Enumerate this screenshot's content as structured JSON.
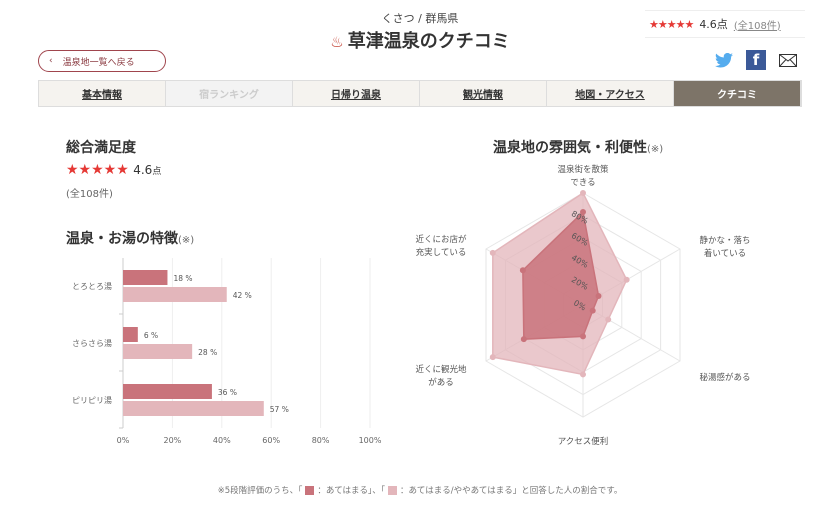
{
  "header": {
    "subtitle": "くさつ / 群馬県",
    "title": "草津温泉のクチコミ",
    "title_icon": "hot-spring-icon",
    "rating_stars": "★★★★★",
    "rating_score": "4.6点",
    "rating_count": "(全108件)",
    "back_label": "温泉地一覧へ戻る"
  },
  "tabs": [
    {
      "label": "基本情報"
    },
    {
      "label": "宿ランキング"
    },
    {
      "label": "日帰り温泉"
    },
    {
      "label": "観光情報"
    },
    {
      "label": "地図・アクセス"
    },
    {
      "label": "クチコミ"
    }
  ],
  "satisfaction": {
    "heading": "総合満足度",
    "stars": "★★★★★",
    "score": "4.6",
    "unit": "点",
    "count": "(全108件)"
  },
  "colors": {
    "dark": "#c9737b",
    "light": "#e3b6bb",
    "accent": "#e53935",
    "active_tab": "#7d7468"
  },
  "chart_data": [
    {
      "type": "bar",
      "title": "温泉・お湯の特徴",
      "title_note": "(※)",
      "categories": [
        "とろとろ湯",
        "さらさら湯",
        "ピリピリ湯"
      ],
      "series": [
        {
          "name": "あてはまる",
          "values": [
            18,
            6,
            36
          ]
        },
        {
          "name": "あてはまる/ややあてはまる",
          "values": [
            42,
            28,
            57
          ]
        }
      ],
      "value_suffix": " %",
      "xlim": [
        0,
        100
      ],
      "xticks": [
        "0%",
        "20%",
        "40%",
        "60%",
        "80%",
        "100%"
      ]
    },
    {
      "type": "radar",
      "title": "温泉地の雰囲気・利便性",
      "title_note": "(※)",
      "axes": [
        "温泉街を散策\nできる",
        "静かな・落ち\n着いている",
        "秘湯感がある",
        "アクセス便利",
        "近くに観光地\nがある",
        "近くにお店が\n充実している"
      ],
      "series": [
        {
          "name": "あてはまる",
          "values": [
            83,
            16,
            10,
            28,
            61,
            62
          ]
        },
        {
          "name": "あてはまる/ややあてはまる",
          "values": [
            100,
            45,
            26,
            62,
            93,
            93
          ]
        }
      ],
      "rticks": [
        "0%",
        "20%",
        "40%",
        "60%",
        "80%"
      ],
      "rlim": [
        0,
        100
      ]
    }
  ],
  "footer": {
    "prefix": "※5段階評価のうち、「",
    "dark_label": "：あてはまる」、「",
    "light_label": "：あてはまる/ややあてはまる」と回答した人の割合です。"
  }
}
